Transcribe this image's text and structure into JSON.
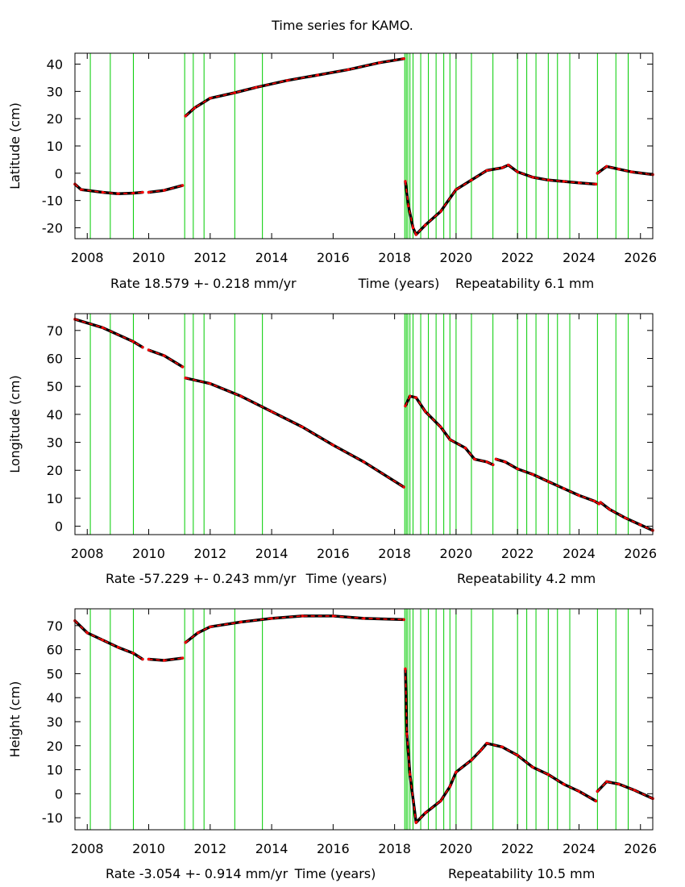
{
  "title": "Time series for KAMO.",
  "chart_data": [
    {
      "type": "scatter",
      "ylabel": "Latitude (cm)",
      "xlabel": "Time (years)",
      "rate_text": "Rate 18.579 +- 0.218 mm/yr",
      "repeat_text": "Repeatability 6.1 mm",
      "xlim": [
        2007.6,
        2026.4
      ],
      "ylim": [
        -24,
        44
      ],
      "xticks": [
        2008,
        2010,
        2012,
        2014,
        2016,
        2018,
        2020,
        2022,
        2024,
        2026
      ],
      "yticks": [
        -20,
        -10,
        0,
        10,
        20,
        30,
        40
      ],
      "segments": [
        [
          [
            2007.6,
            -4
          ],
          [
            2007.8,
            -6
          ],
          [
            2008.5,
            -7
          ],
          [
            2009,
            -7.5
          ],
          [
            2009.5,
            -7.3
          ],
          [
            2009.8,
            -7
          ]
        ],
        [
          [
            2010.0,
            -7
          ],
          [
            2010.5,
            -6.3
          ],
          [
            2011.1,
            -4.5
          ]
        ],
        [
          [
            2011.2,
            21
          ],
          [
            2011.5,
            24
          ],
          [
            2012,
            27.5
          ],
          [
            2012.8,
            29.5
          ],
          [
            2013.5,
            31.5
          ],
          [
            2014.5,
            34
          ],
          [
            2015.5,
            36
          ],
          [
            2016.5,
            38
          ],
          [
            2017.5,
            40.5
          ],
          [
            2018.3,
            42
          ]
        ],
        [
          [
            2018.35,
            -3
          ],
          [
            2018.45,
            -12
          ],
          [
            2018.6,
            -20
          ],
          [
            2018.7,
            -22.5
          ],
          [
            2019,
            -19
          ],
          [
            2019.5,
            -14
          ],
          [
            2020,
            -6
          ],
          [
            2020.5,
            -2.5
          ],
          [
            2021,
            1
          ],
          [
            2021.5,
            2
          ],
          [
            2021.7,
            3
          ],
          [
            2022,
            0.5
          ],
          [
            2022.5,
            -1.5
          ],
          [
            2023,
            -2.5
          ],
          [
            2023.5,
            -3
          ],
          [
            2024,
            -3.5
          ],
          [
            2024.55,
            -4
          ]
        ],
        [
          [
            2024.6,
            0
          ],
          [
            2024.9,
            2.5
          ],
          [
            2025.3,
            1.5
          ],
          [
            2025.7,
            0.5
          ],
          [
            2026.4,
            -0.5
          ]
        ]
      ]
    },
    {
      "type": "scatter",
      "ylabel": "Longitude (cm)",
      "xlabel": "Time (years)",
      "rate_text": "Rate -57.229 +- 0.243 mm/yr",
      "repeat_text": "Repeatability 4.2 mm",
      "xlim": [
        2007.6,
        2026.4
      ],
      "ylim": [
        -3,
        76
      ],
      "xticks": [
        2008,
        2010,
        2012,
        2014,
        2016,
        2018,
        2020,
        2022,
        2024,
        2026
      ],
      "yticks": [
        0,
        10,
        20,
        30,
        40,
        50,
        60,
        70
      ],
      "segments": [
        [
          [
            2007.6,
            74
          ],
          [
            2008.5,
            71
          ],
          [
            2009.5,
            66
          ],
          [
            2009.8,
            64
          ]
        ],
        [
          [
            2010.0,
            63
          ],
          [
            2010.5,
            61
          ],
          [
            2011.1,
            57
          ]
        ],
        [
          [
            2011.2,
            53
          ],
          [
            2012,
            51
          ],
          [
            2013,
            46.5
          ],
          [
            2014,
            41
          ],
          [
            2015,
            35.5
          ],
          [
            2016,
            29
          ],
          [
            2017,
            23
          ],
          [
            2018.3,
            14
          ]
        ],
        [
          [
            2018.35,
            43
          ],
          [
            2018.5,
            46.5
          ],
          [
            2018.7,
            46
          ],
          [
            2019,
            41
          ],
          [
            2019.5,
            35.5
          ],
          [
            2019.8,
            31
          ],
          [
            2020.3,
            28
          ],
          [
            2020.6,
            24
          ],
          [
            2021.0,
            23
          ],
          [
            2021.2,
            22
          ]
        ],
        [
          [
            2021.3,
            24
          ],
          [
            2021.6,
            23
          ],
          [
            2022.0,
            20.5
          ],
          [
            2022.5,
            18.5
          ],
          [
            2023,
            16
          ],
          [
            2023.5,
            13.5
          ],
          [
            2024,
            11
          ],
          [
            2024.5,
            9
          ],
          [
            2024.65,
            8
          ]
        ],
        [
          [
            2024.7,
            8.5
          ],
          [
            2025,
            6
          ],
          [
            2025.5,
            3
          ],
          [
            2026.0,
            0.5
          ],
          [
            2026.4,
            -1.5
          ]
        ]
      ]
    },
    {
      "type": "scatter",
      "ylabel": "Height (cm)",
      "xlabel": "Time (years)",
      "rate_text": "Rate -3.054 +- 0.914 mm/yr",
      "repeat_text": "Repeatability 10.5 mm",
      "xlim": [
        2007.6,
        2026.4
      ],
      "ylim": [
        -15,
        77
      ],
      "xticks": [
        2008,
        2010,
        2012,
        2014,
        2016,
        2018,
        2020,
        2022,
        2024,
        2026
      ],
      "yticks": [
        -10,
        0,
        10,
        20,
        30,
        40,
        50,
        60,
        70
      ],
      "segments": [
        [
          [
            2007.6,
            72
          ],
          [
            2008,
            67
          ],
          [
            2008.5,
            64
          ],
          [
            2009,
            61
          ],
          [
            2009.5,
            58.5
          ],
          [
            2009.8,
            56
          ]
        ],
        [
          [
            2010.0,
            56
          ],
          [
            2010.5,
            55.5
          ],
          [
            2011.1,
            56.5
          ]
        ],
        [
          [
            2011.2,
            63
          ],
          [
            2011.6,
            67
          ],
          [
            2012,
            69.5
          ],
          [
            2013,
            71.5
          ],
          [
            2014,
            73
          ],
          [
            2015,
            74
          ],
          [
            2016,
            74
          ],
          [
            2017,
            73
          ],
          [
            2018.3,
            72.5
          ]
        ],
        [
          [
            2018.35,
            52
          ],
          [
            2018.4,
            25
          ],
          [
            2018.5,
            8
          ],
          [
            2018.7,
            -12
          ],
          [
            2019,
            -8
          ],
          [
            2019.5,
            -3
          ],
          [
            2019.8,
            3
          ],
          [
            2020.0,
            9
          ],
          [
            2020.5,
            14
          ],
          [
            2020.8,
            18
          ],
          [
            2021,
            21
          ],
          [
            2021.5,
            19.5
          ],
          [
            2022,
            16
          ],
          [
            2022.5,
            11
          ],
          [
            2023,
            8
          ],
          [
            2023.5,
            4
          ],
          [
            2024,
            1
          ],
          [
            2024.55,
            -3
          ]
        ],
        [
          [
            2024.6,
            1
          ],
          [
            2024.9,
            5
          ],
          [
            2025.3,
            4
          ],
          [
            2025.8,
            1.5
          ],
          [
            2026.4,
            -2
          ]
        ]
      ]
    }
  ],
  "events_x": [
    2008.1,
    2008.75,
    2009.5,
    2011.17,
    2011.45,
    2011.8,
    2012.8,
    2013.7,
    2018.33,
    2018.38,
    2018.43,
    2018.5,
    2018.6,
    2018.85,
    2019.1,
    2019.35,
    2019.6,
    2019.8,
    2020.0,
    2020.5,
    2021.2,
    2022.0,
    2022.3,
    2022.6,
    2023.0,
    2023.3,
    2023.7,
    2024.6,
    2025.2,
    2025.6
  ],
  "colors": {
    "event": "#00cc00",
    "data": "#000000",
    "model": "#ff0000",
    "frame": "#000000"
  }
}
